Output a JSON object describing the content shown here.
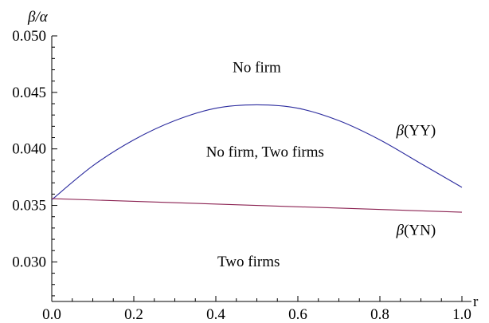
{
  "chart_data": {
    "type": "line",
    "ylabel": "β/α",
    "xlabel": "r",
    "xlim": [
      0.0,
      1.0
    ],
    "ylim": [
      0.0265,
      0.05
    ],
    "x_ticks": [
      "0.0",
      "0.2",
      "0.4",
      "0.6",
      "0.8",
      "1.0"
    ],
    "y_ticks": [
      "0.030",
      "0.035",
      "0.040",
      "0.045",
      "0.050"
    ],
    "series": [
      {
        "name": "β(YY)",
        "color": "#2b2b9e",
        "x": [
          0.0,
          0.1,
          0.2,
          0.3,
          0.4,
          0.5,
          0.6,
          0.7,
          0.8,
          0.9,
          1.0
        ],
        "y": [
          0.0355,
          0.0385,
          0.0408,
          0.0425,
          0.0436,
          0.0439,
          0.0436,
          0.0425,
          0.0408,
          0.0387,
          0.0366
        ]
      },
      {
        "name": "β(YN)",
        "color": "#8b2252",
        "x": [
          0.0,
          1.0
        ],
        "y": [
          0.0356,
          0.0344
        ]
      }
    ],
    "annotations": [
      {
        "text": "No firm",
        "x": 0.5,
        "y": 0.0468
      },
      {
        "text": "No firm, Two firms",
        "x": 0.52,
        "y": 0.0393
      },
      {
        "text": "Two firms",
        "x": 0.48,
        "y": 0.0296
      }
    ],
    "curve_labels": [
      {
        "series": 0,
        "text_prefix": "β",
        "text_suffix": "(YY)",
        "x": 0.84,
        "y": 0.0412
      },
      {
        "series": 1,
        "text_prefix": "β",
        "text_suffix": "(YN)",
        "x": 0.84,
        "y": 0.0324
      }
    ]
  }
}
